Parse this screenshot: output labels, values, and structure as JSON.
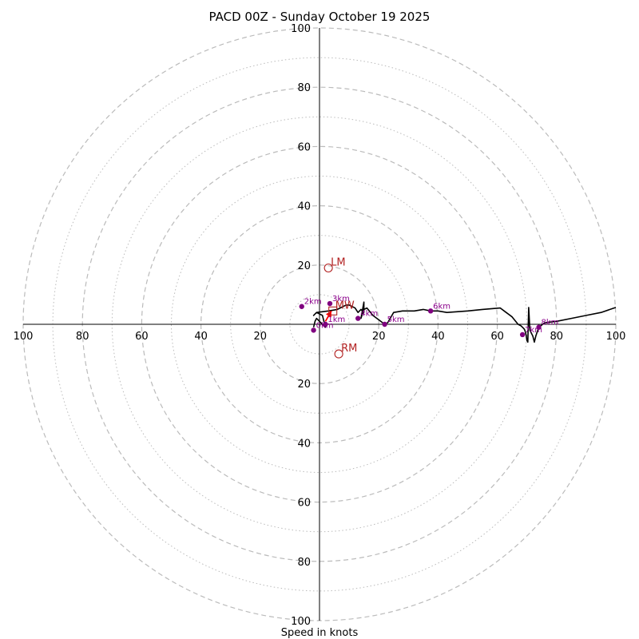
{
  "chart_data": {
    "type": "hodograph",
    "title": "PACD 00Z - Sunday October 19 2025",
    "xlabel": "Speed in knots",
    "range": [
      -100,
      100
    ],
    "ring_major": [
      20,
      40,
      60,
      80,
      100
    ],
    "ring_minor": [
      10,
      30,
      50,
      70,
      90
    ],
    "tick_values": [
      20,
      40,
      60,
      80,
      100
    ],
    "tick_labels": [
      "20",
      "40",
      "60",
      "80",
      "100"
    ],
    "grid": true,
    "colors": {
      "profile": "#000000",
      "height_marker": "#800080",
      "motion": "#b22222",
      "grid": "#bbbbbb"
    },
    "profile": {
      "u": [
        -2,
        -1.5,
        -1,
        0,
        2,
        1,
        -1,
        -2,
        -1,
        3,
        6,
        8,
        9,
        10,
        11,
        12,
        13,
        14,
        15,
        15,
        14,
        15,
        16,
        18,
        20,
        22,
        23,
        25,
        28,
        32,
        35,
        37.5,
        40,
        43,
        50,
        55,
        61,
        63,
        65,
        67,
        68,
        68.5,
        69,
        69.3,
        69.7,
        70,
        70.3,
        70.6,
        71,
        72,
        72.5,
        73,
        74,
        76,
        80,
        85,
        90,
        95,
        100
      ],
      "v": [
        -1,
        1,
        2,
        1,
        -1,
        3,
        4,
        3,
        4,
        4.5,
        5,
        6,
        6.5,
        6.5,
        6,
        5.5,
        4,
        5,
        4,
        7.5,
        2,
        5,
        5.5,
        3,
        1.5,
        0,
        0.5,
        4,
        4.5,
        4.5,
        5,
        4.5,
        4.5,
        4,
        4.5,
        5,
        5.5,
        4,
        2.5,
        0,
        -0.5,
        -1,
        -1.5,
        -2,
        -3.5,
        -5.5,
        -6,
        5.7,
        -2,
        -4,
        -6,
        -4,
        -1,
        0.5,
        1,
        2,
        3,
        4,
        5.7
      ]
    },
    "height_markers": [
      {
        "label": "0km",
        "u": -2,
        "v": -2
      },
      {
        "label": "1km",
        "u": 2,
        "v": 0
      },
      {
        "label": "2km",
        "u": -6,
        "v": 6
      },
      {
        "label": "3km",
        "u": 3.5,
        "v": 7
      },
      {
        "label": "4km",
        "u": 13,
        "v": 2
      },
      {
        "label": "5km",
        "u": 22,
        "v": 0
      },
      {
        "label": "6km",
        "u": 37.5,
        "v": 4.5
      },
      {
        "label": "7km",
        "u": 68.5,
        "v": -3.5
      },
      {
        "label": "8km",
        "u": 74,
        "v": -1
      }
    ],
    "storm_motion": [
      {
        "label": "LM",
        "u": 3,
        "v": 19,
        "shape": "circle"
      },
      {
        "label": "RM",
        "u": 6.5,
        "v": -10,
        "shape": "circle"
      },
      {
        "label": "MW",
        "u": 4.5,
        "v": 4.5,
        "shape": "square"
      }
    ],
    "shear_arrow": {
      "from": [
        2,
        1
      ],
      "to": [
        4,
        4.5
      ]
    }
  }
}
